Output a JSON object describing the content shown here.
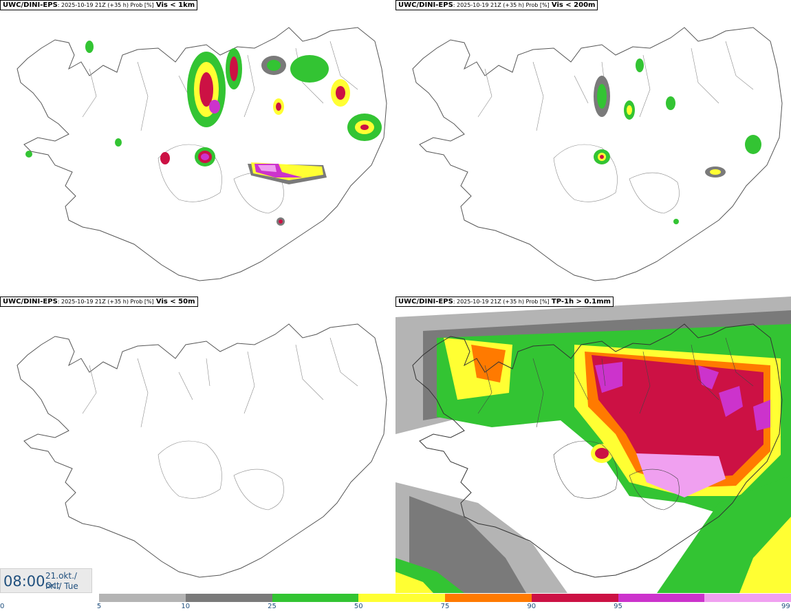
{
  "panels": [
    {
      "model": "UWC/DINI-EPS",
      "meta": ": 2025-10-19 21Z (+35 h) Prob [%]",
      "var": "Vis < 1km"
    },
    {
      "model": "UWC/DINI-EPS",
      "meta": ": 2025-10-19 21Z (+35 h) Prob [%]",
      "var": "Vis < 200m"
    },
    {
      "model": "UWC/DINI-EPS",
      "meta": ": 2025-10-19 21Z (+35 h) Prob [%]",
      "var": "Vis < 50m"
    },
    {
      "model": "UWC/DINI-EPS",
      "meta": ": 2025-10-19 21Z (+35 h) Prob [%]",
      "var": "TP-1h > 0.1mm"
    }
  ],
  "valid_time": {
    "time": "08:00",
    "date_line1": "21.okt./ Oct",
    "date_line2": "Þri./ Tue"
  },
  "colorbar": {
    "ticks": [
      "0",
      "5",
      "10",
      "25",
      "50",
      "75",
      "90",
      "95",
      "99"
    ],
    "colors": [
      "#b4b4b4",
      "#7a7a7a",
      "#33c433",
      "#ffff33",
      "#ff7a00",
      "#cc1144",
      "#cc33cc",
      "#f0a0f0"
    ]
  }
}
